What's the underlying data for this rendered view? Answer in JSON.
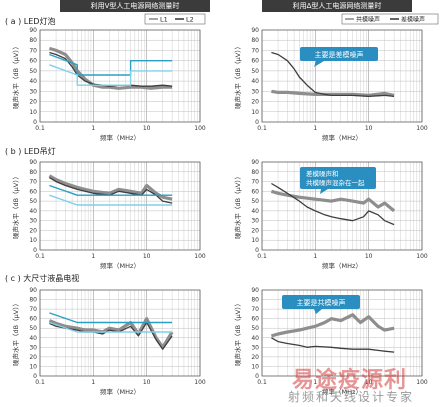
{
  "headers": {
    "left": "利用V型人工电源网络测量时",
    "right": "利用Δ型人工电源网络测量时"
  },
  "legends": {
    "left": [
      "L1",
      "L2"
    ],
    "right": [
      "共模噪声",
      "差模噪声"
    ]
  },
  "rows": [
    {
      "label": "( a ) LED灯泡"
    },
    {
      "label": "( b ) LED吊灯"
    },
    {
      "label": "( c ) 大尺寸液晶电视"
    }
  ],
  "callouts": {
    "a_right": [
      "主要是差模噪声"
    ],
    "b_right": [
      "差模噪声和",
      "共模噪声混杂在一起"
    ],
    "c_right": [
      "主要是共模噪声"
    ]
  },
  "axis": {
    "xlabel": "频率（MHz）",
    "ylabel": "噪声水平（dB（μV））",
    "xticks": [
      "0.1",
      "1",
      "10",
      "100"
    ],
    "yticks": [
      "0",
      "10",
      "20",
      "30",
      "40",
      "50",
      "60",
      "70",
      "80",
      "90"
    ]
  },
  "colors": {
    "gray": "#8e8e8e",
    "dark": "#3e3e3e",
    "limit": "#2a9fc4",
    "limit_light": "#7fd0ea",
    "callout": "#2a8fc0",
    "header": "#3b3b3b"
  },
  "watermark": {
    "big": "易途疫源利",
    "small": "射频和天线设计专家"
  },
  "chart_data": [
    {
      "type": "line",
      "panel": "a-left",
      "xscale": "log",
      "xlim": [
        0.1,
        100
      ],
      "ylim": [
        0,
        90
      ],
      "xlabel": "频率（MHz）",
      "ylabel": "噪声水平（dB（μV））",
      "series": [
        {
          "name": "L1",
          "x": [
            0.15,
            0.2,
            0.3,
            0.4,
            0.5,
            0.7,
            1,
            1.5,
            2,
            3,
            5,
            8,
            12,
            20,
            30
          ],
          "y": [
            72,
            70,
            66,
            58,
            50,
            42,
            36,
            34,
            34,
            33,
            34,
            34,
            33,
            34,
            34
          ]
        },
        {
          "name": "L2",
          "x": [
            0.15,
            0.2,
            0.3,
            0.4,
            0.5,
            0.7,
            1,
            1.5,
            2,
            3,
            5,
            8,
            12,
            20,
            30
          ],
          "y": [
            68,
            66,
            62,
            54,
            46,
            40,
            37,
            36,
            35,
            36,
            36,
            35,
            35,
            36,
            35
          ]
        },
        {
          "x": [
            0.15,
            0.5,
            0.5,
            5,
            5,
            30
          ],
          "y": [
            66,
            56,
            46,
            46,
            60,
            60
          ]
        },
        {
          "x": [
            0.15,
            0.5,
            0.5,
            5,
            5,
            30
          ],
          "y": [
            56,
            46,
            36,
            36,
            50,
            50
          ]
        }
      ]
    },
    {
      "type": "line",
      "panel": "a-right",
      "xscale": "log",
      "xlim": [
        0.1,
        100
      ],
      "ylim": [
        0,
        90
      ],
      "xlabel": "频率（MHz）",
      "ylabel": "噪声水平（dB（μV））",
      "series": [
        {
          "name": "共模噪声",
          "x": [
            0.15,
            0.2,
            0.3,
            0.5,
            1,
            2,
            5,
            10,
            20,
            30
          ],
          "y": [
            30,
            29,
            29,
            28,
            27,
            27,
            27,
            26,
            28,
            26
          ]
        },
        {
          "name": "差模噪声",
          "x": [
            0.15,
            0.2,
            0.3,
            0.4,
            0.5,
            0.7,
            1,
            1.5,
            2,
            3,
            5,
            10,
            20,
            30
          ],
          "y": [
            68,
            66,
            60,
            52,
            44,
            36,
            29,
            27,
            26,
            26,
            26,
            25,
            26,
            25
          ]
        }
      ]
    },
    {
      "type": "line",
      "panel": "b-left",
      "xscale": "log",
      "xlim": [
        0.1,
        100
      ],
      "ylim": [
        0,
        90
      ],
      "xlabel": "频率（MHz）",
      "ylabel": "噪声水平（dB（μV））",
      "series": [
        {
          "name": "L1",
          "x": [
            0.15,
            0.2,
            0.3,
            0.5,
            0.7,
            1,
            2,
            3,
            5,
            8,
            10,
            15,
            20,
            30
          ],
          "y": [
            76,
            72,
            68,
            64,
            62,
            60,
            58,
            62,
            60,
            58,
            66,
            58,
            54,
            52
          ]
        },
        {
          "name": "L2",
          "x": [
            0.15,
            0.2,
            0.3,
            0.5,
            0.7,
            1,
            2,
            3,
            5,
            8,
            10,
            15,
            20,
            30
          ],
          "y": [
            74,
            70,
            66,
            62,
            60,
            58,
            56,
            60,
            58,
            56,
            62,
            56,
            50,
            48
          ]
        },
        {
          "x": [
            0.15,
            0.5,
            0.5,
            30
          ],
          "y": [
            66,
            56,
            56,
            56
          ]
        },
        {
          "x": [
            0.15,
            0.5,
            0.5,
            30
          ],
          "y": [
            56,
            46,
            46,
            46
          ]
        }
      ]
    },
    {
      "type": "line",
      "panel": "b-right",
      "xscale": "log",
      "xlim": [
        0.1,
        100
      ],
      "ylim": [
        0,
        90
      ],
      "xlabel": "频率（MHz）",
      "ylabel": "噪声水平（dB（μV））",
      "series": [
        {
          "name": "共模噪声",
          "x": [
            0.15,
            0.2,
            0.3,
            0.5,
            1,
            2,
            3,
            5,
            8,
            10,
            15,
            20,
            30
          ],
          "y": [
            60,
            58,
            56,
            54,
            52,
            50,
            52,
            50,
            48,
            52,
            44,
            48,
            40
          ]
        },
        {
          "name": "差模噪声",
          "x": [
            0.15,
            0.2,
            0.3,
            0.5,
            0.7,
            1,
            1.5,
            2,
            3,
            5,
            8,
            10,
            15,
            20,
            30
          ],
          "y": [
            68,
            64,
            58,
            50,
            44,
            40,
            36,
            34,
            32,
            30,
            34,
            40,
            36,
            30,
            26
          ]
        }
      ]
    },
    {
      "type": "line",
      "panel": "c-left",
      "xscale": "log",
      "xlim": [
        0.1,
        100
      ],
      "ylim": [
        0,
        90
      ],
      "xlabel": "频率（MHz）",
      "ylabel": "噪声水平（dB（μV））",
      "series": [
        {
          "name": "L1",
          "x": [
            0.15,
            0.2,
            0.3,
            0.5,
            0.7,
            1,
            1.5,
            2,
            3,
            5,
            7,
            10,
            15,
            20,
            30
          ],
          "y": [
            58,
            55,
            52,
            50,
            48,
            48,
            46,
            50,
            48,
            56,
            44,
            60,
            40,
            30,
            46
          ]
        },
        {
          "name": "L2",
          "x": [
            0.15,
            0.2,
            0.3,
            0.5,
            0.7,
            1,
            1.5,
            2,
            3,
            5,
            7,
            10,
            15,
            20,
            30
          ],
          "y": [
            55,
            52,
            50,
            48,
            46,
            46,
            44,
            48,
            46,
            52,
            42,
            56,
            38,
            28,
            42
          ]
        },
        {
          "x": [
            0.15,
            0.5,
            0.5,
            30
          ],
          "y": [
            66,
            56,
            56,
            56
          ]
        },
        {
          "x": [
            0.15,
            0.5,
            0.5,
            30
          ],
          "y": [
            56,
            46,
            46,
            46
          ]
        }
      ]
    },
    {
      "type": "line",
      "panel": "c-right",
      "xscale": "log",
      "xlim": [
        0.1,
        100
      ],
      "ylim": [
        0,
        90
      ],
      "xlabel": "频率（MHz）",
      "ylabel": "噪声水平（dB（μV））",
      "series": [
        {
          "name": "共模噪声",
          "x": [
            0.15,
            0.2,
            0.3,
            0.5,
            0.7,
            1,
            1.5,
            2,
            3,
            5,
            7,
            10,
            15,
            20,
            30
          ],
          "y": [
            42,
            44,
            46,
            48,
            50,
            52,
            56,
            60,
            58,
            64,
            56,
            62,
            52,
            48,
            50
          ]
        },
        {
          "name": "差模噪声",
          "x": [
            0.15,
            0.2,
            0.3,
            0.5,
            0.7,
            1,
            2,
            3,
            5,
            10,
            20,
            30
          ],
          "y": [
            40,
            36,
            34,
            32,
            30,
            31,
            30,
            29,
            28,
            28,
            26,
            25
          ]
        }
      ]
    }
  ]
}
